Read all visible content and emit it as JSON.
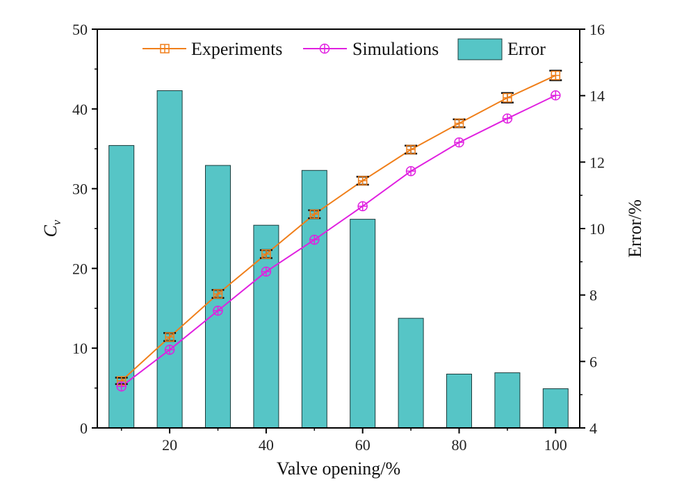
{
  "chart_data": {
    "type": "bar+line",
    "x": [
      10,
      20,
      30,
      40,
      50,
      60,
      70,
      80,
      90,
      100
    ],
    "xlabel": "Valve opening/%",
    "xticks": [
      "20",
      "40",
      "60",
      "80",
      "100"
    ],
    "xlim": [
      5,
      105
    ],
    "ylabel": "C",
    "ylabel_sub": "v",
    "ylim": [
      0,
      50
    ],
    "yticks": [
      "0",
      "10",
      "20",
      "30",
      "40",
      "50"
    ],
    "y2label": "Error/%",
    "y2lim": [
      4,
      16
    ],
    "y2ticks": [
      "4",
      "6",
      "8",
      "10",
      "12",
      "14",
      "16"
    ],
    "grid": false,
    "legend_position": "top",
    "series": [
      {
        "name": "Experiments",
        "kind": "line",
        "axis": "left",
        "marker": "square-cross",
        "color": "#F07F1A",
        "values": [
          5.9,
          11.4,
          16.8,
          21.8,
          26.8,
          31.0,
          34.9,
          38.2,
          41.4,
          44.2
        ],
        "error": [
          0.4,
          0.5,
          0.5,
          0.5,
          0.5,
          0.5,
          0.5,
          0.5,
          0.6,
          0.6
        ]
      },
      {
        "name": "Simulations",
        "kind": "line",
        "axis": "left",
        "marker": "circle-cross",
        "color": "#E020E0",
        "values": [
          5.2,
          9.8,
          14.7,
          19.6,
          23.6,
          27.8,
          32.2,
          35.8,
          38.8,
          41.7
        ]
      },
      {
        "name": "Error",
        "kind": "bar",
        "axis": "right",
        "color": "#56C5C6",
        "values": [
          12.5,
          14.15,
          11.9,
          10.1,
          11.75,
          10.28,
          7.3,
          5.62,
          5.66,
          5.18
        ]
      }
    ]
  }
}
